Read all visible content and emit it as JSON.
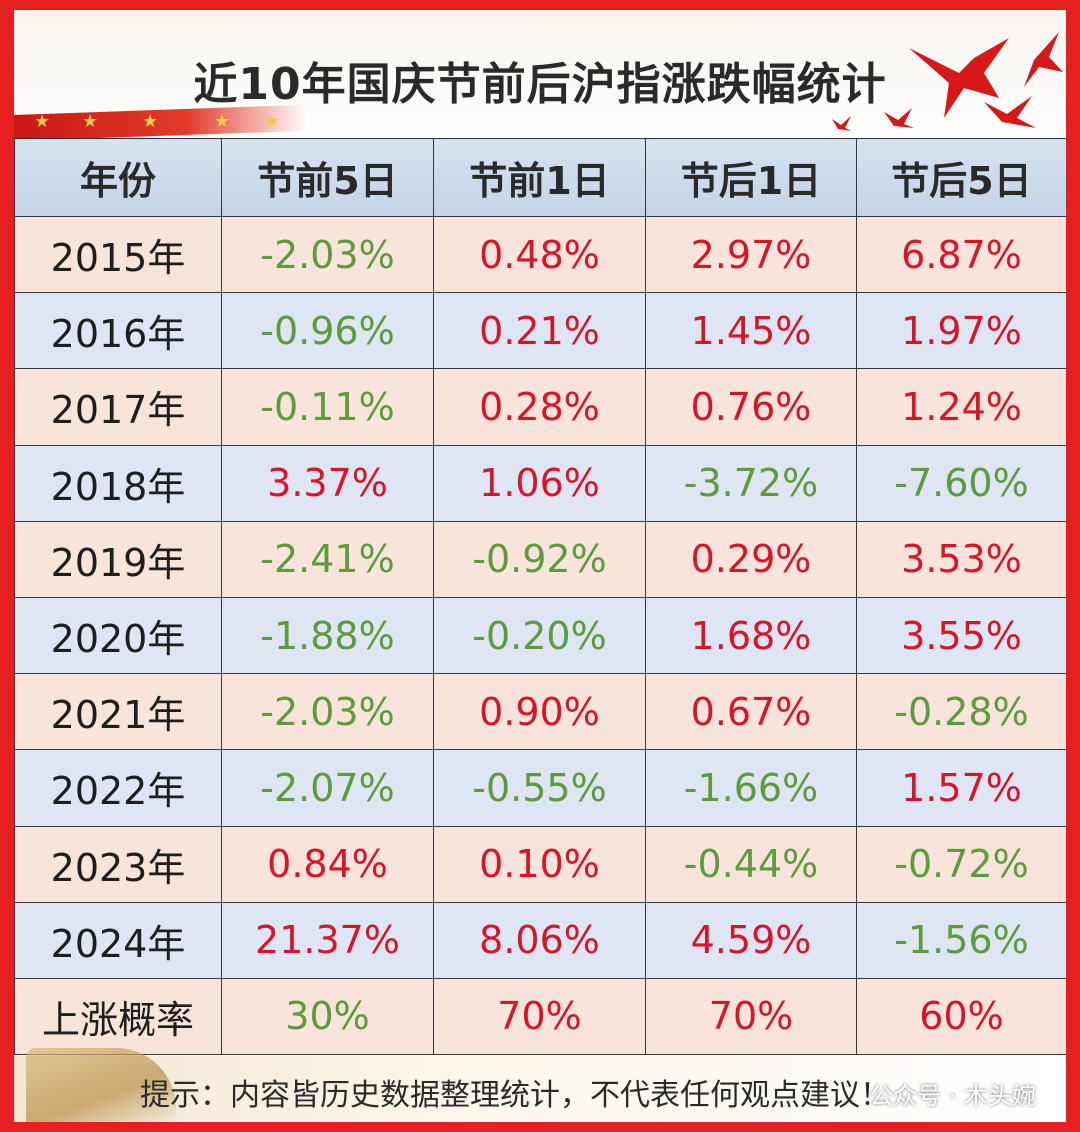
{
  "title": "近10年国庆节前后沪指涨跌幅统计",
  "colors": {
    "positive": "#d9142a",
    "negative": "#5e9a3e",
    "frame": "#e52020"
  },
  "icons": [
    "red-bird-icon",
    "star-icon",
    "great-wall-icon"
  ],
  "table": {
    "headers": [
      "年份",
      "节前5日",
      "节前1日",
      "节后1日",
      "节后5日"
    ],
    "rows": [
      {
        "year": "2015年",
        "values": [
          "-2.03%",
          "0.48%",
          "2.97%",
          "6.87%"
        ]
      },
      {
        "year": "2016年",
        "values": [
          "-0.96%",
          "0.21%",
          "1.45%",
          "1.97%"
        ]
      },
      {
        "year": "2017年",
        "values": [
          "-0.11%",
          "0.28%",
          "0.76%",
          "1.24%"
        ]
      },
      {
        "year": "2018年",
        "values": [
          "3.37%",
          "1.06%",
          "-3.72%",
          "-7.60%"
        ]
      },
      {
        "year": "2019年",
        "values": [
          "-2.41%",
          "-0.92%",
          "0.29%",
          "3.53%"
        ]
      },
      {
        "year": "2020年",
        "values": [
          "-1.88%",
          "-0.20%",
          "1.68%",
          "3.55%"
        ]
      },
      {
        "year": "2021年",
        "values": [
          "-2.03%",
          "0.90%",
          "0.67%",
          "-0.28%"
        ]
      },
      {
        "year": "2022年",
        "values": [
          "-2.07%",
          "-0.55%",
          "-1.66%",
          "1.57%"
        ]
      },
      {
        "year": "2023年",
        "values": [
          "0.84%",
          "0.10%",
          "-0.44%",
          "-0.72%"
        ]
      },
      {
        "year": "2024年",
        "values": [
          "21.37%",
          "8.06%",
          "4.59%",
          "-1.56%"
        ]
      }
    ],
    "summary": {
      "label": "上涨概率",
      "values": [
        "30%",
        "70%",
        "70%",
        "60%"
      ]
    }
  },
  "footer": {
    "note": "提示：内容皆历史数据整理统计，不代表任何观点建议！"
  },
  "watermark": "公众号 · 木头婉"
}
